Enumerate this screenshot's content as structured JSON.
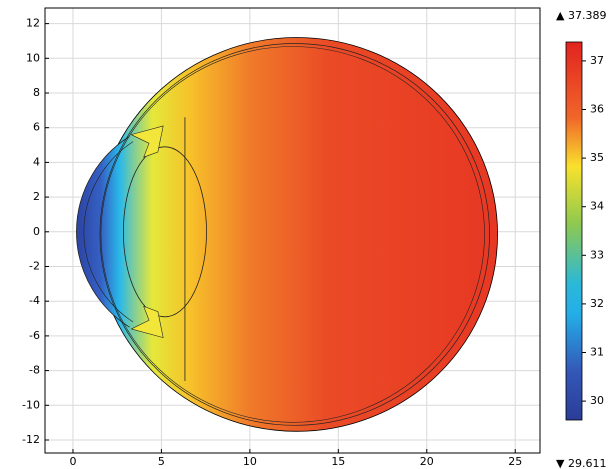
{
  "chart_data": {
    "type": "surface",
    "xlim": [
      -1.58,
      26.4
    ],
    "xticks": [
      0,
      5,
      10,
      15,
      20,
      25
    ],
    "ylim": [
      -12.75,
      12.9
    ],
    "yticks": [
      -12,
      -10,
      -8,
      -6,
      -4,
      -2,
      0,
      2,
      4,
      6,
      8,
      10,
      12
    ],
    "grid": true,
    "colormap": "rainbow",
    "clim": [
      29.611,
      37.389
    ],
    "clim_labels": [
      "▼ 29.611",
      "▲ 37.389"
    ],
    "cticks": [
      30,
      31,
      32,
      33,
      34,
      35,
      36,
      37
    ]
  }
}
